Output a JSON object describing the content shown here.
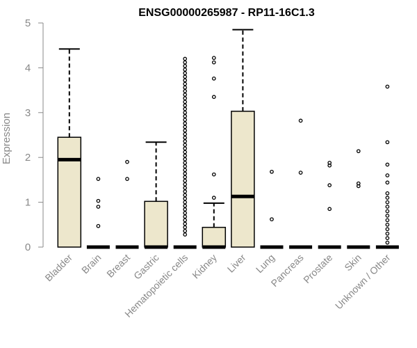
{
  "chart_data": {
    "type": "boxplot",
    "title": "ENSG00000265987 - RP11-16C1.3",
    "xlabel": "",
    "ylabel": "Expression",
    "ylim": [
      0,
      5
    ],
    "yticks": [
      "0",
      "1",
      "2",
      "3",
      "4",
      "5"
    ],
    "box_fill": "#ede7cc",
    "categories": [
      "Bladder",
      "Brain",
      "Breast",
      "Gastric",
      "Hematopoietic cells",
      "Kidney",
      "Liver",
      "Lung",
      "Pancreas",
      "Prostate",
      "Skin",
      "Unknown / Other"
    ],
    "boxes": [
      {
        "q1": 0,
        "median": 1.95,
        "q3": 2.45,
        "whisker_low": 0,
        "whisker_high": 4.42,
        "outliers": []
      },
      {
        "q1": 0,
        "median": 0,
        "q3": 0,
        "whisker_low": 0,
        "whisker_high": 0,
        "outliers": [
          0.47,
          0.9,
          1.03,
          1.52
        ]
      },
      {
        "q1": 0,
        "median": 0,
        "q3": 0,
        "whisker_low": 0,
        "whisker_high": 0,
        "outliers": [
          1.52,
          1.9
        ]
      },
      {
        "q1": 0,
        "median": 0,
        "q3": 1.02,
        "whisker_low": 0,
        "whisker_high": 2.34,
        "outliers": []
      },
      {
        "q1": 0,
        "median": 0,
        "q3": 0,
        "whisker_low": 0,
        "whisker_high": 0,
        "outliers": [
          0.28,
          0.36,
          0.44,
          0.52,
          0.6,
          0.68,
          0.76,
          0.84,
          0.92,
          1.0,
          1.08,
          1.16,
          1.24,
          1.32,
          1.4,
          1.48,
          1.56,
          1.64,
          1.72,
          1.8,
          1.88,
          1.96,
          2.04,
          2.12,
          2.2,
          2.28,
          2.36,
          2.44,
          2.52,
          2.6,
          2.68,
          2.76,
          2.84,
          2.92,
          3.0,
          3.08,
          3.16,
          3.24,
          3.32,
          3.4,
          3.48,
          3.56,
          3.64,
          3.72,
          3.8,
          3.88,
          3.96,
          4.04,
          4.12,
          4.2
        ]
      },
      {
        "q1": 0,
        "median": 0,
        "q3": 0.44,
        "whisker_low": 0,
        "whisker_high": 0.98,
        "outliers": [
          1.1,
          1.62,
          3.35,
          3.76,
          4.12,
          4.22
        ]
      },
      {
        "q1": 0,
        "median": 1.13,
        "q3": 3.03,
        "whisker_low": 0,
        "whisker_high": 4.85,
        "outliers": []
      },
      {
        "q1": 0,
        "median": 0,
        "q3": 0,
        "whisker_low": 0,
        "whisker_high": 0,
        "outliers": [
          0.62,
          1.68
        ]
      },
      {
        "q1": 0,
        "median": 0,
        "q3": 0,
        "whisker_low": 0,
        "whisker_high": 0,
        "outliers": [
          1.66,
          2.82
        ]
      },
      {
        "q1": 0,
        "median": 0,
        "q3": 0,
        "whisker_low": 0,
        "whisker_high": 0,
        "outliers": [
          0.85,
          1.38,
          1.82,
          1.88
        ]
      },
      {
        "q1": 0,
        "median": 0,
        "q3": 0,
        "whisker_low": 0,
        "whisker_high": 0,
        "outliers": [
          1.36,
          1.42,
          2.14
        ]
      },
      {
        "q1": 0,
        "median": 0,
        "q3": 0,
        "whisker_low": 0,
        "whisker_high": 0,
        "outliers": [
          0.1,
          0.2,
          0.3,
          0.4,
          0.5,
          0.6,
          0.7,
          0.8,
          0.9,
          1.0,
          1.1,
          1.2,
          1.44,
          1.6,
          1.84,
          2.34,
          3.58
        ]
      }
    ]
  }
}
